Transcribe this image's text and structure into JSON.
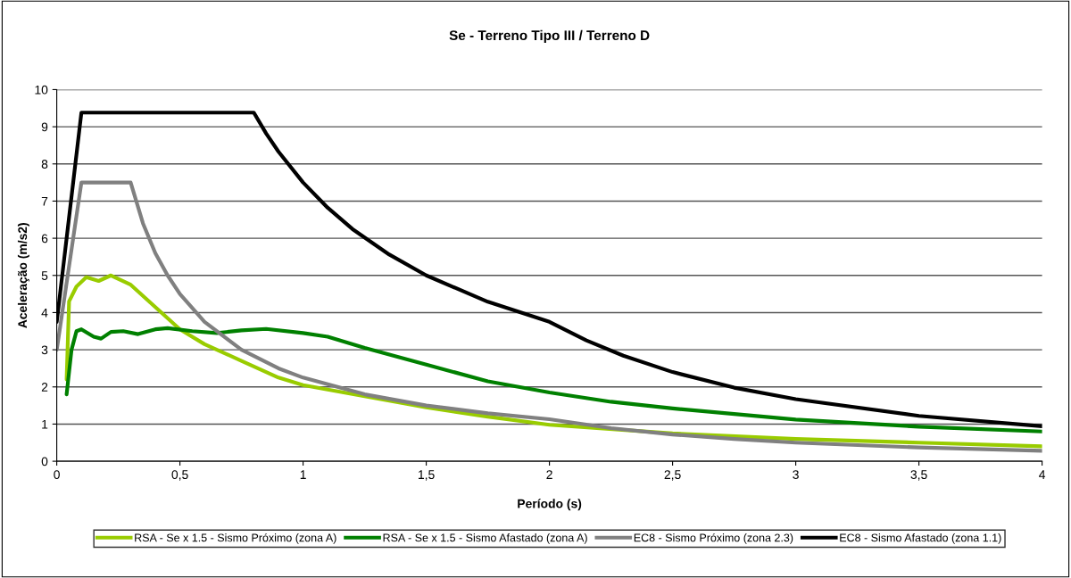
{
  "chart_data": {
    "type": "line",
    "title": "Se - Terreno Tipo III / Terreno D",
    "xlabel": "Período (s)",
    "ylabel": "Aceleração (m/s2)",
    "xlim": [
      0,
      4
    ],
    "xticks": [
      {
        "value": 0,
        "label": "0"
      },
      {
        "value": 0.5,
        "label": "0,5"
      },
      {
        "value": 1,
        "label": "1"
      },
      {
        "value": 1.5,
        "label": "1,5"
      },
      {
        "value": 2,
        "label": "2"
      },
      {
        "value": 2.5,
        "label": "2,5"
      },
      {
        "value": 3,
        "label": "3"
      },
      {
        "value": 3.5,
        "label": "3,5"
      },
      {
        "value": 4,
        "label": "4"
      }
    ],
    "ylim": [
      0,
      10
    ],
    "yticks": [
      0,
      1,
      2,
      3,
      4,
      5,
      6,
      7,
      8,
      9,
      10
    ],
    "grid": "y",
    "legend": "bottom",
    "marker": "none",
    "line_style": "solid",
    "series": [
      {
        "name": "RSA - Se x 1.5 - Sismo Próximo (zona A)",
        "color": "#99cc00",
        "x": [
          0.04,
          0.05,
          0.08,
          0.12,
          0.17,
          0.22,
          0.3,
          0.4,
          0.5,
          0.6,
          0.75,
          0.9,
          1.0,
          1.25,
          1.5,
          1.75,
          2.0,
          2.5,
          3.0,
          3.5,
          4.0
        ],
        "values": [
          2.2,
          4.3,
          4.7,
          4.95,
          4.85,
          5.0,
          4.75,
          4.15,
          3.55,
          3.15,
          2.7,
          2.25,
          2.05,
          1.75,
          1.45,
          1.2,
          0.98,
          0.75,
          0.6,
          0.5,
          0.4
        ]
      },
      {
        "name": "RSA - Se x 1.5 - Sismo Afastado (zona A)",
        "color": "#008000",
        "x": [
          0.04,
          0.06,
          0.08,
          0.1,
          0.15,
          0.18,
          0.22,
          0.27,
          0.33,
          0.4,
          0.45,
          0.55,
          0.65,
          0.75,
          0.85,
          1.0,
          1.1,
          1.25,
          1.5,
          1.75,
          2.0,
          2.25,
          2.5,
          3.0,
          3.5,
          4.0
        ],
        "values": [
          1.8,
          3.0,
          3.5,
          3.55,
          3.35,
          3.3,
          3.48,
          3.5,
          3.42,
          3.55,
          3.58,
          3.5,
          3.45,
          3.52,
          3.56,
          3.45,
          3.35,
          3.05,
          2.6,
          2.15,
          1.85,
          1.6,
          1.42,
          1.12,
          0.93,
          0.8
        ]
      },
      {
        "name": "EC8 - Sismo Próximo (zona 2.3)",
        "color": "#808080",
        "x": [
          0.0,
          0.1,
          0.3,
          0.35,
          0.4,
          0.45,
          0.5,
          0.6,
          0.75,
          0.9,
          1.0,
          1.25,
          1.5,
          1.75,
          2.0,
          2.25,
          2.5,
          2.75,
          3.0,
          3.5,
          4.0
        ],
        "values": [
          3.0,
          7.5,
          7.5,
          6.4,
          5.6,
          5.0,
          4.5,
          3.75,
          3.0,
          2.5,
          2.25,
          1.8,
          1.5,
          1.29,
          1.13,
          0.89,
          0.72,
          0.6,
          0.5,
          0.37,
          0.28
        ]
      },
      {
        "name": "EC8 - Sismo Afastado (zona 1.1)",
        "color": "#000000",
        "x": [
          0.0,
          0.1,
          0.8,
          0.85,
          0.9,
          1.0,
          1.1,
          1.2,
          1.35,
          1.5,
          1.75,
          2.0,
          2.15,
          2.3,
          2.5,
          2.75,
          3.0,
          3.5,
          4.0
        ],
        "values": [
          3.75,
          9.38,
          9.38,
          8.82,
          8.33,
          7.5,
          6.82,
          6.25,
          5.56,
          5.0,
          4.29,
          3.75,
          3.25,
          2.84,
          2.4,
          1.98,
          1.67,
          1.22,
          0.94
        ]
      }
    ]
  }
}
